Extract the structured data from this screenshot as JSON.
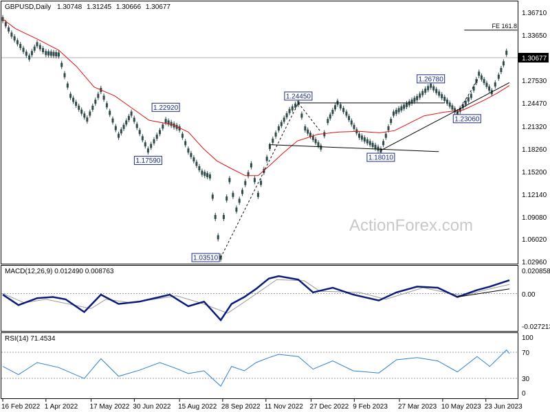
{
  "chart_data": [
    {
      "type": "candlestick",
      "title": "GBPUSD,Daily",
      "ohlc_readout": [
        "1.30748",
        "1.31245",
        "1.30666",
        "1.30677"
      ],
      "ylim": [
        1.0296,
        1.3671
      ],
      "y_ticks": [
        "1.36710",
        "1.33650",
        "1.30590",
        "1.27530",
        "1.24470",
        "1.21320",
        "1.18260",
        "1.15200",
        "1.12140",
        "1.09080",
        "1.06020",
        "1.02960"
      ],
      "current_price": "1.30677",
      "watermark": "ActionForex.com",
      "series": [
        {
          "kind": "price",
          "points": [
            [
              "2022-02-16",
              1.358
            ],
            [
              "2022-02-25",
              1.337
            ],
            [
              "2022-03-15",
              1.306
            ],
            [
              "2022-03-23",
              1.324
            ],
            [
              "2022-04-01",
              1.312
            ],
            [
              "2022-04-14",
              1.31
            ],
            [
              "2022-04-26",
              1.254
            ],
            [
              "2022-05-13",
              1.222
            ],
            [
              "2022-05-27",
              1.262
            ],
            [
              "2022-06-14",
              1.2
            ],
            [
              "2022-06-27",
              1.23
            ],
            [
              "2022-07-14",
              1.18
            ],
            [
              "2022-07-26",
              1.205
            ],
            [
              "2022-08-01",
              1.22
            ],
            [
              "2022-08-15",
              1.21
            ],
            [
              "2022-08-24",
              1.18
            ],
            [
              "2022-09-07",
              1.15
            ],
            [
              "2022-09-15",
              1.145
            ],
            [
              "2022-09-26",
              1.0351
            ],
            [
              "2022-09-29",
              1.09
            ],
            [
              "2022-10-05",
              1.14
            ],
            [
              "2022-10-12",
              1.1
            ],
            [
              "2022-10-27",
              1.16
            ],
            [
              "2022-11-03",
              1.12
            ],
            [
              "2022-11-15",
              1.185
            ],
            [
              "2022-11-24",
              1.21
            ],
            [
              "2022-12-05",
              1.2335
            ],
            [
              "2022-12-14",
              1.2445
            ],
            [
              "2022-12-21",
              1.21
            ],
            [
              "2023-01-06",
              1.1841
            ],
            [
              "2023-01-13",
              1.22
            ],
            [
              "2023-01-23",
              1.2447
            ],
            [
              "2023-02-01",
              1.23
            ],
            [
              "2023-02-14",
              1.2
            ],
            [
              "2023-03-08",
              1.1801
            ],
            [
              "2023-03-21",
              1.23
            ],
            [
              "2023-04-14",
              1.251
            ],
            [
              "2023-04-28",
              1.2678
            ],
            [
              "2023-05-12",
              1.25
            ],
            [
              "2023-05-25",
              1.2306
            ],
            [
              "2023-06-08",
              1.254
            ],
            [
              "2023-06-16",
              1.284
            ],
            [
              "2023-06-29",
              1.259
            ],
            [
              "2023-07-06",
              1.28
            ],
            [
              "2023-07-11",
              1.298
            ],
            [
              "2023-07-14",
              1.3124
            ],
            [
              "2023-07-17",
              1.3068
            ]
          ]
        },
        {
          "kind": "moving-average",
          "color": "#e01010",
          "points": [
            [
              "2022-02-16",
              1.358
            ],
            [
              "2022-03-01",
              1.345
            ],
            [
              "2022-03-23",
              1.331
            ],
            [
              "2022-04-14",
              1.316
            ],
            [
              "2022-05-02",
              1.294
            ],
            [
              "2022-05-20",
              1.266
            ],
            [
              "2022-06-10",
              1.254
            ],
            [
              "2022-06-27",
              1.238
            ],
            [
              "2022-07-15",
              1.221
            ],
            [
              "2022-08-08",
              1.215
            ],
            [
              "2022-08-24",
              1.205
            ],
            [
              "2022-09-08",
              1.183
            ],
            [
              "2022-09-22",
              1.166
            ],
            [
              "2022-10-06",
              1.156
            ],
            [
              "2022-10-21",
              1.146
            ],
            [
              "2022-11-03",
              1.146
            ],
            [
              "2022-11-15",
              1.16
            ],
            [
              "2022-11-28",
              1.176
            ],
            [
              "2022-12-13",
              1.193
            ],
            [
              "2023-01-03",
              1.202
            ],
            [
              "2023-01-24",
              1.205
            ],
            [
              "2023-02-14",
              1.206
            ],
            [
              "2023-03-07",
              1.204
            ],
            [
              "2023-03-22",
              1.207
            ],
            [
              "2023-04-06",
              1.217
            ],
            [
              "2023-04-21",
              1.227
            ],
            [
              "2023-05-12",
              1.232
            ],
            [
              "2023-05-31",
              1.235
            ],
            [
              "2023-06-21",
              1.248
            ],
            [
              "2023-07-05",
              1.258
            ],
            [
              "2023-07-17",
              1.268
            ]
          ]
        }
      ],
      "labels": [
        {
          "text": "1.17590",
          "date": "2022-07-14",
          "value": 1.1759
        },
        {
          "text": "1.22920",
          "date": "2022-08-01",
          "value": 1.2292
        },
        {
          "text": "1.03510",
          "date": "2022-09-26",
          "value": 1.0351
        },
        {
          "text": "1.24450",
          "date": "2022-12-14",
          "value": 1.2445
        },
        {
          "text": "1.18010",
          "date": "2023-03-08",
          "value": 1.1801
        },
        {
          "text": "1.26780",
          "date": "2023-04-28",
          "value": 1.2678
        },
        {
          "text": "1.23060",
          "date": "2023-05-25",
          "value": 1.2306
        },
        {
          "text": "FE 161.8",
          "date": "2023-07-05",
          "value": 1.343
        }
      ],
      "lines": [
        {
          "kind": "resistance",
          "from": [
            "2022-12-14",
            1.2445
          ],
          "to": [
            "2023-05-12",
            1.2445
          ]
        },
        {
          "kind": "support",
          "from": [
            "2022-11-14",
            1.188
          ],
          "to": [
            "2023-05-06",
            1.1785
          ]
        },
        {
          "kind": "trendline",
          "from": [
            "2023-03-08",
            1.1801
          ],
          "to": [
            "2023-07-17",
            1.272
          ]
        },
        {
          "kind": "fe-level",
          "from": [
            "2023-06-01",
            1.343
          ],
          "to": [
            "2023-07-25",
            1.343
          ]
        },
        {
          "kind": "dashed-projection",
          "from": [
            "2022-09-26",
            1.0351
          ],
          "to": [
            "2022-12-14",
            1.2445
          ]
        },
        {
          "kind": "dashed-projection",
          "from": [
            "2022-12-14",
            1.2445
          ],
          "to": [
            "2023-01-06",
            1.205
          ]
        },
        {
          "kind": "dashed-projection",
          "from": [
            "2023-05-25",
            1.2306
          ],
          "to": [
            "2023-06-16",
            1.279
          ]
        }
      ]
    },
    {
      "type": "line",
      "title": "MACD(12,26,9) 0.012490 0.008763",
      "y_ticks": [
        "0.020858",
        "0.00",
        "-0.027213"
      ],
      "ylim": [
        -0.027213,
        0.020858
      ],
      "zero_line": true,
      "series": [
        {
          "kind": "macd",
          "color": "#0a1a7a",
          "points": [
            [
              "2022-02-16",
              0.0
            ],
            [
              "2022-03-04",
              -0.009
            ],
            [
              "2022-03-23",
              -0.003
            ],
            [
              "2022-04-08",
              -0.002
            ],
            [
              "2022-04-21",
              -0.004
            ],
            [
              "2022-05-10",
              -0.015
            ],
            [
              "2022-05-27",
              0.0
            ],
            [
              "2022-06-14",
              -0.008
            ],
            [
              "2022-07-05",
              -0.006
            ],
            [
              "2022-07-26",
              -0.002
            ],
            [
              "2022-08-05",
              0.0
            ],
            [
              "2022-08-24",
              -0.01
            ],
            [
              "2022-09-09",
              -0.006
            ],
            [
              "2022-09-26",
              -0.022
            ],
            [
              "2022-10-07",
              -0.008
            ],
            [
              "2022-10-20",
              -0.002
            ],
            [
              "2022-11-01",
              0.005
            ],
            [
              "2022-11-14",
              0.014
            ],
            [
              "2022-11-24",
              0.016
            ],
            [
              "2022-12-14",
              0.013
            ],
            [
              "2022-12-29",
              0.002
            ],
            [
              "2023-01-18",
              0.006
            ],
            [
              "2023-02-08",
              0.0
            ],
            [
              "2023-03-06",
              -0.005
            ],
            [
              "2023-03-24",
              0.002
            ],
            [
              "2023-04-14",
              0.007
            ],
            [
              "2023-05-05",
              0.006
            ],
            [
              "2023-05-25",
              -0.002
            ],
            [
              "2023-06-14",
              0.004
            ],
            [
              "2023-06-27",
              0.007
            ],
            [
              "2023-07-17",
              0.0125
            ]
          ]
        },
        {
          "kind": "signal",
          "color": "#999999",
          "points": [
            [
              "2022-02-16",
              0.001
            ],
            [
              "2022-03-10",
              -0.007
            ],
            [
              "2022-04-01",
              -0.004
            ],
            [
              "2022-05-17",
              -0.012
            ],
            [
              "2022-06-01",
              -0.004
            ],
            [
              "2022-06-27",
              -0.007
            ],
            [
              "2022-08-12",
              -0.001
            ],
            [
              "2022-09-05",
              -0.007
            ],
            [
              "2022-10-03",
              -0.016
            ],
            [
              "2022-10-24",
              -0.004
            ],
            [
              "2022-11-22",
              0.013
            ],
            [
              "2022-12-20",
              0.012
            ],
            [
              "2023-01-05",
              0.003
            ],
            [
              "2023-02-14",
              0.002
            ],
            [
              "2023-03-13",
              -0.004
            ],
            [
              "2023-04-20",
              0.006
            ],
            [
              "2023-05-30",
              -0.001
            ],
            [
              "2023-06-27",
              0.005
            ],
            [
              "2023-07-17",
              0.0088
            ]
          ]
        }
      ],
      "lines": [
        {
          "kind": "trendline",
          "from": [
            "2023-05-25",
            -0.002
          ],
          "to": [
            "2023-07-17",
            0.005
          ]
        }
      ]
    },
    {
      "type": "line",
      "title": "RSI(14) 71.4534",
      "y_ticks": [
        "100",
        "70",
        "30",
        "0"
      ],
      "ylim": [
        0,
        100
      ],
      "levels": [
        70,
        30
      ],
      "series": [
        {
          "kind": "rsi",
          "color": "#2a7fd4",
          "points": [
            [
              "2022-02-16",
              48
            ],
            [
              "2022-03-04",
              33
            ],
            [
              "2022-03-23",
              55
            ],
            [
              "2022-04-14",
              46
            ],
            [
              "2022-05-10",
              26
            ],
            [
              "2022-05-27",
              62
            ],
            [
              "2022-06-14",
              30
            ],
            [
              "2022-07-05",
              41
            ],
            [
              "2022-07-26",
              55
            ],
            [
              "2022-08-12",
              44
            ],
            [
              "2022-08-24",
              35
            ],
            [
              "2022-09-09",
              40
            ],
            [
              "2022-09-26",
              12
            ],
            [
              "2022-10-07",
              48
            ],
            [
              "2022-10-20",
              40
            ],
            [
              "2022-11-01",
              55
            ],
            [
              "2022-11-14",
              64
            ],
            [
              "2022-11-24",
              70
            ],
            [
              "2022-12-14",
              66
            ],
            [
              "2022-12-29",
              43
            ],
            [
              "2023-01-18",
              58
            ],
            [
              "2023-02-08",
              40
            ],
            [
              "2023-03-06",
              36
            ],
            [
              "2023-03-24",
              60
            ],
            [
              "2023-04-14",
              64
            ],
            [
              "2023-05-05",
              58
            ],
            [
              "2023-05-25",
              38
            ],
            [
              "2023-06-14",
              66
            ],
            [
              "2023-06-27",
              48
            ],
            [
              "2023-07-05",
              62
            ],
            [
              "2023-07-14",
              78
            ],
            [
              "2023-07-17",
              71.45
            ]
          ]
        }
      ]
    }
  ],
  "x_axis": {
    "tick_labels": [
      {
        "date": "2022-02-16",
        "label": "16 Feb 2022"
      },
      {
        "date": "2022-04-01",
        "label": "1 Apr 2022"
      },
      {
        "date": "2022-05-17",
        "label": "17 May 2022"
      },
      {
        "date": "2022-06-30",
        "label": "30 Jun 2022"
      },
      {
        "date": "2022-08-15",
        "label": "15 Aug 2022"
      },
      {
        "date": "2022-09-28",
        "label": "28 Sep 2022"
      },
      {
        "date": "2022-11-11",
        "label": "11 Nov 2022"
      },
      {
        "date": "2022-12-27",
        "label": "27 Dec 2022"
      },
      {
        "date": "2023-02-09",
        "label": "9 Feb 2023"
      },
      {
        "date": "2023-03-27",
        "label": "27 Mar 2023"
      },
      {
        "date": "2023-05-10",
        "label": "10 May 2023"
      },
      {
        "date": "2023-06-23",
        "label": "23 Jun 2023"
      }
    ]
  }
}
